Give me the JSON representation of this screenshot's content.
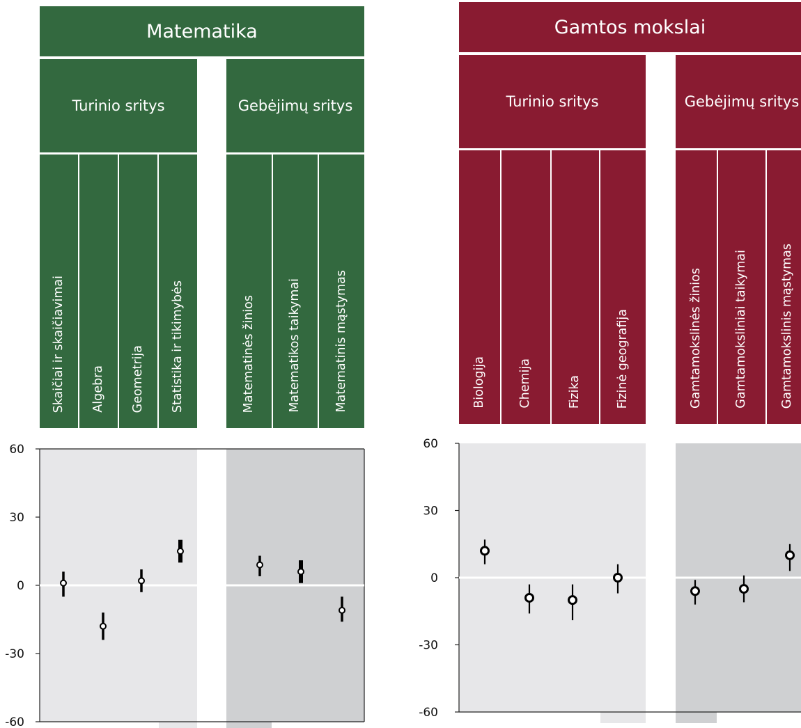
{
  "colors": {
    "math": "#33693f",
    "science": "#891b31",
    "bg_light": "#e7e7e9",
    "bg_dark": "#cfd0d2"
  },
  "chart_data": [
    {
      "type": "scatter",
      "title": "Matematika",
      "ylim": [
        -60,
        60
      ],
      "yticks": [
        "60",
        "30",
        "0",
        "-30",
        "-60"
      ],
      "groups": [
        {
          "label": "Turinio sritys",
          "categories": [
            "Skaičiai ir skaičiavimai",
            "Algebra",
            "Geometrija",
            "Statistika ir tikimybės"
          ]
        },
        {
          "label": "Gebėjimų sritys",
          "categories": [
            "Matematinės žinios",
            "Matematikos taikymai",
            "Matematinis mąstymas"
          ]
        }
      ],
      "values": [
        1,
        -18,
        2,
        15,
        9,
        6,
        -11
      ],
      "ci_low": [
        -5,
        -24,
        -3,
        10,
        4,
        1,
        -16
      ],
      "ci_high": [
        6,
        -12,
        7,
        20,
        13,
        11,
        -5
      ]
    },
    {
      "type": "scatter",
      "title": "Gamtos mokslai",
      "ylim": [
        -60,
        60
      ],
      "yticks": [
        "60",
        "30",
        "0",
        "-30",
        "-60"
      ],
      "groups": [
        {
          "label": "Turinio sritys",
          "categories": [
            "Biologija",
            "Chemija",
            "Fizika",
            "Fizinė geografija"
          ]
        },
        {
          "label": "Gebėjimų sritys",
          "categories": [
            "Gamtamokslinės žinios",
            "Gamtamoksliniai taikymai",
            "Gamtamokslinis mąstymas"
          ]
        }
      ],
      "values": [
        12,
        -9,
        -10,
        0,
        -6,
        -5,
        10
      ],
      "ci_low": [
        6,
        -16,
        -19,
        -7,
        -12,
        -11,
        3
      ],
      "ci_high": [
        17,
        -3,
        -3,
        6,
        -1,
        1,
        15
      ]
    }
  ]
}
